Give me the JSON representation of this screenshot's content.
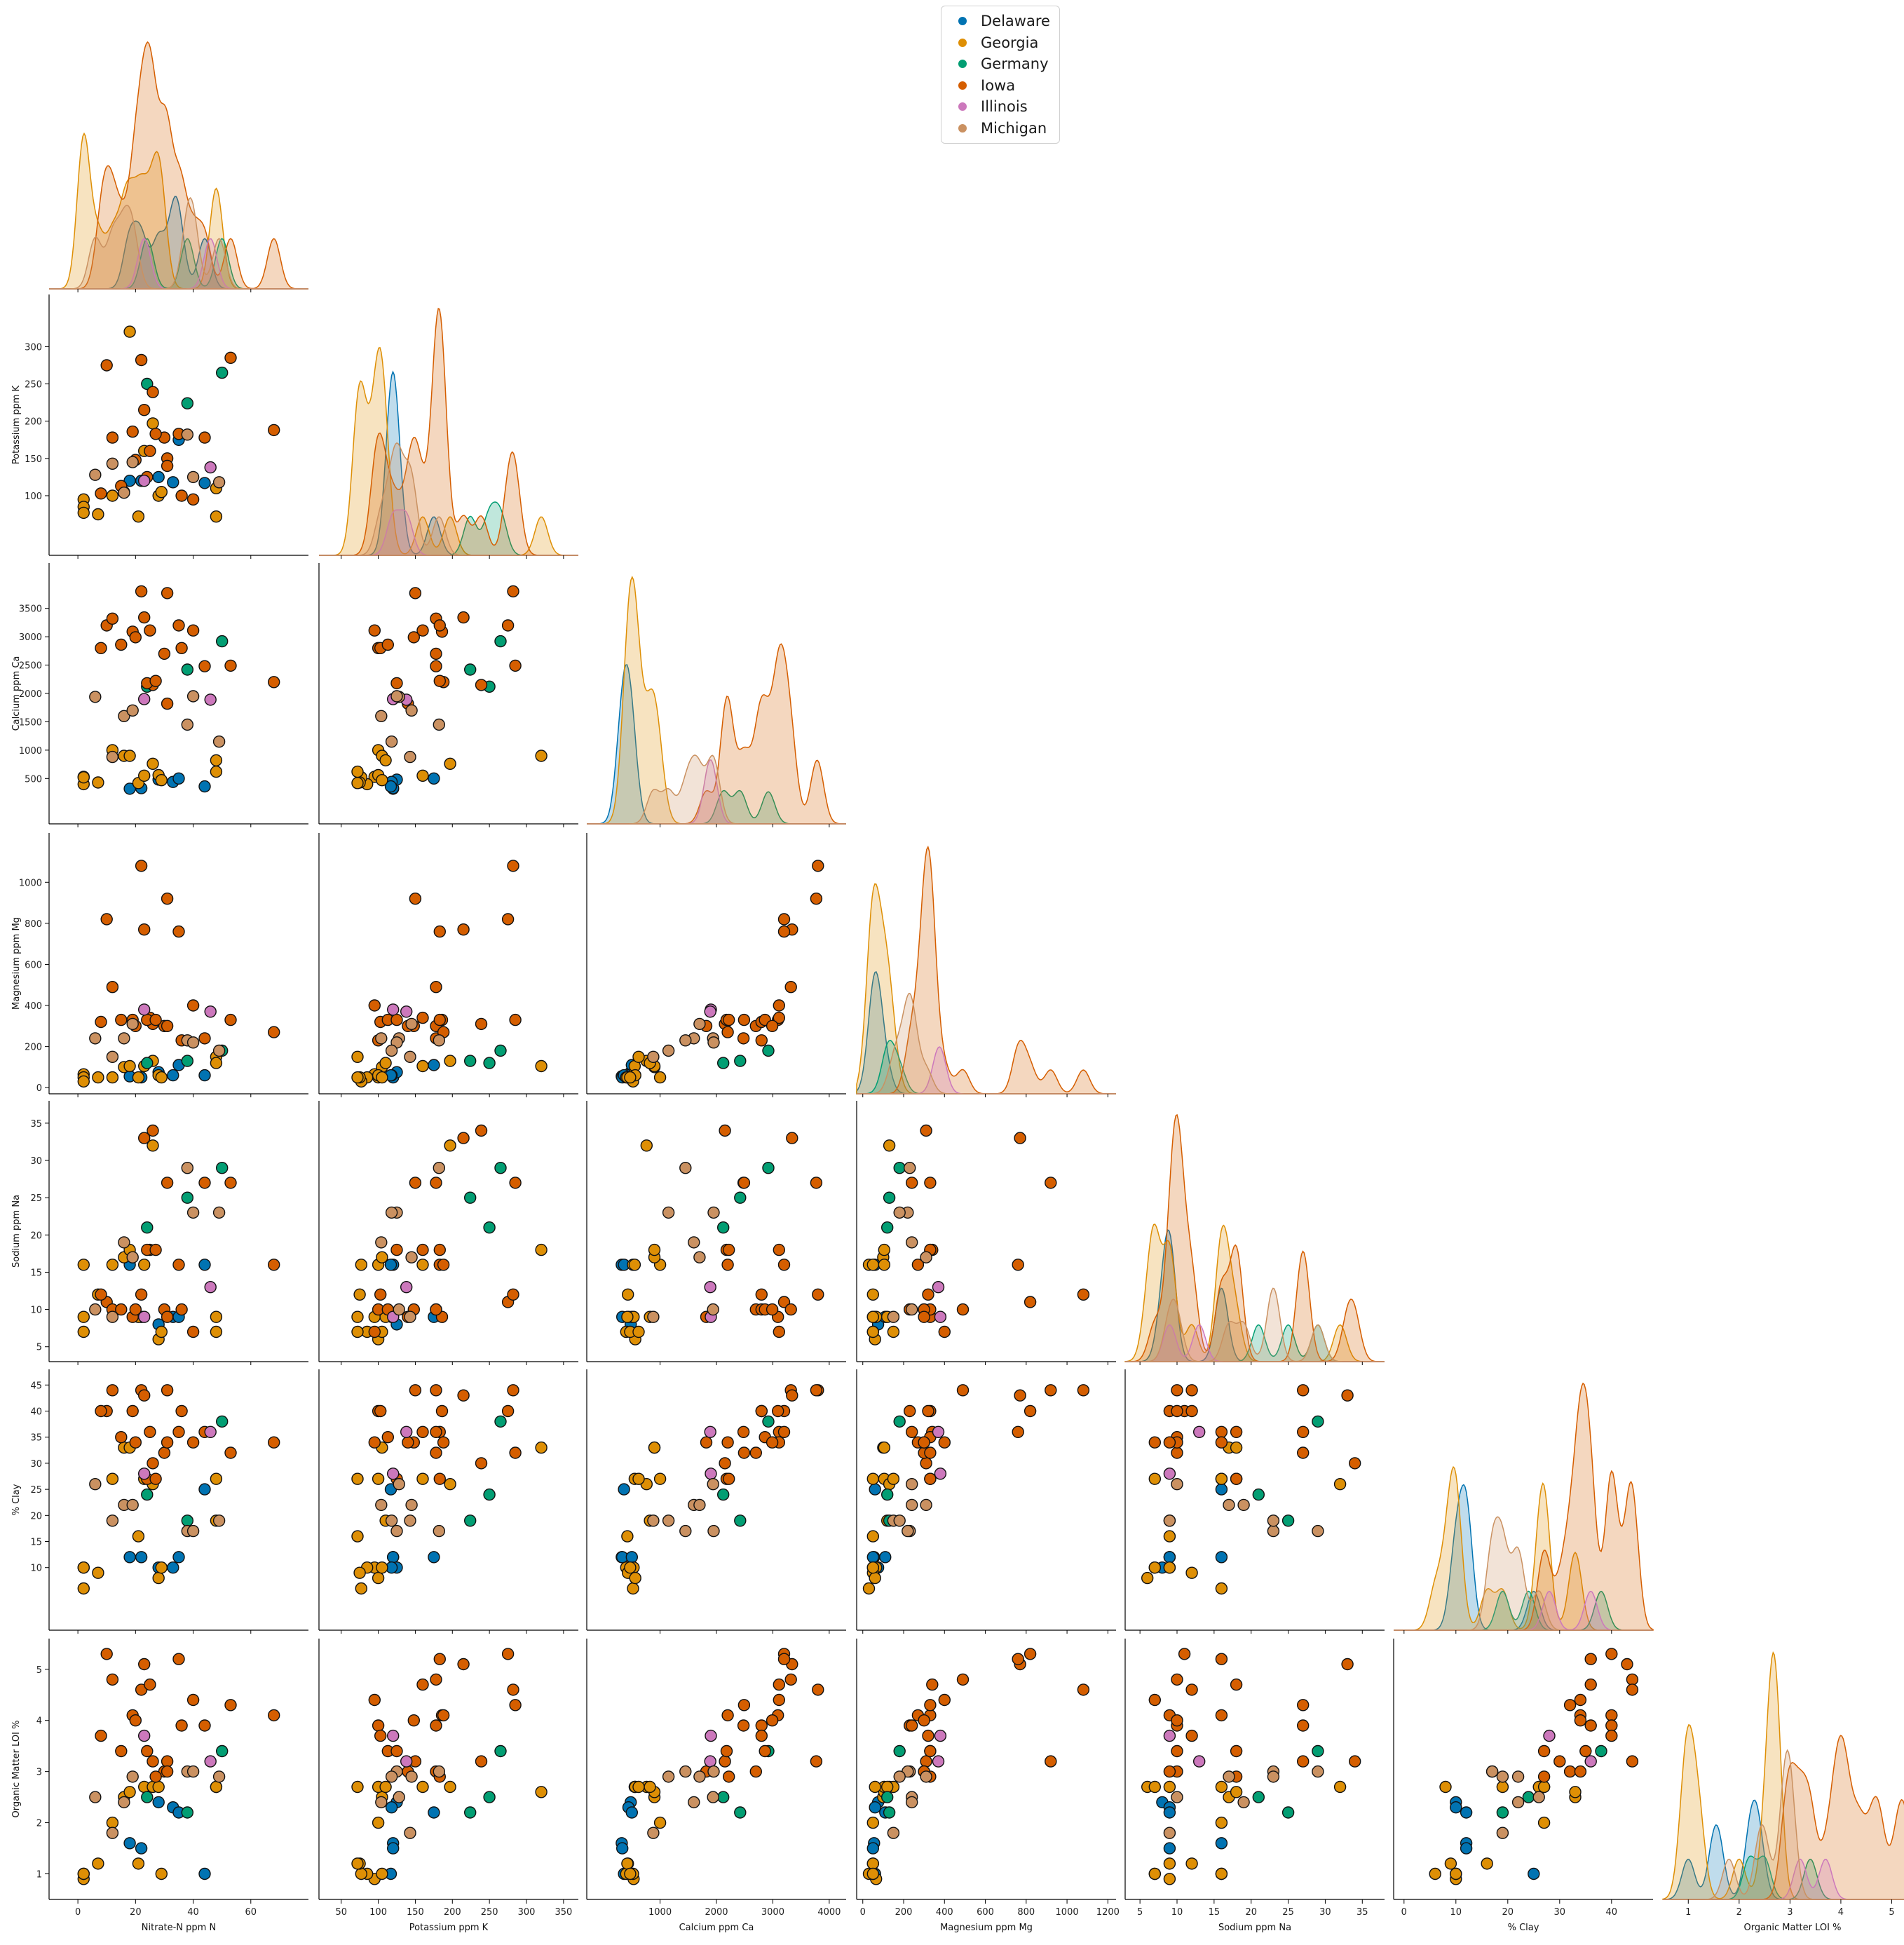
{
  "chart_data": {
    "type": "scatter",
    "subtype": "pairplot-lower-corner",
    "variables": [
      "Nitrate-N ppm N",
      "Potassium ppm K",
      "Calcium ppm Ca",
      "Magnesium ppm Mg",
      "Sodium ppm Na",
      "% Clay",
      "Organic Matter LOI %"
    ],
    "axis_ranges": [
      [
        -10,
        80
      ],
      [
        20,
        370
      ],
      [
        -300,
        4300
      ],
      [
        -30,
        1240
      ],
      [
        3,
        38
      ],
      [
        -2,
        48
      ],
      [
        0.5,
        5.6
      ]
    ],
    "ticks": [
      [
        0,
        20,
        40,
        60
      ],
      [
        100,
        150,
        200,
        250,
        300
      ],
      [
        500,
        1000,
        1500,
        2000,
        2500,
        3000,
        3500
      ],
      [
        0,
        200,
        400,
        600,
        800,
        1000
      ],
      [
        5,
        10,
        15,
        20,
        25,
        30,
        35
      ],
      [
        10,
        15,
        20,
        25,
        30,
        35,
        40,
        45
      ],
      [
        1,
        2,
        3,
        4,
        5
      ]
    ],
    "x_ticks": [
      [
        0,
        20,
        40,
        60
      ],
      [
        50,
        100,
        150,
        200,
        250,
        300,
        350
      ],
      [
        1000,
        2000,
        3000,
        4000
      ],
      [
        0,
        200,
        400,
        600,
        800,
        1000,
        1200
      ],
      [
        5,
        10,
        15,
        20,
        25,
        30,
        35
      ],
      [
        0,
        10,
        20,
        30,
        40
      ],
      [
        1,
        2,
        3,
        4,
        5
      ]
    ],
    "legend": {
      "position": "top-center",
      "entries": [
        "Delaware",
        "Georgia",
        "Germany",
        "Iowa",
        "Illinois",
        "Michigan"
      ]
    },
    "series": [
      {
        "name": "Delaware",
        "color": "#0173b2",
        "points": [
          [
            18,
            120,
            320,
            55,
            16,
            12,
            1.6
          ],
          [
            22,
            120,
            330,
            50,
            9,
            12,
            1.5
          ],
          [
            28,
            125,
            480,
            75,
            8,
            10,
            2.4
          ],
          [
            33,
            118,
            440,
            60,
            9,
            10,
            2.3
          ],
          [
            35,
            175,
            500,
            110,
            9,
            12,
            2.2
          ],
          [
            44,
            117,
            360,
            60,
            16,
            25,
            1.0
          ]
        ]
      },
      {
        "name": "Georgia",
        "color": "#de8f05",
        "points": [
          [
            2,
            95,
            530,
            65,
            9,
            10,
            0.9
          ],
          [
            2,
            85,
            400,
            50,
            7,
            10,
            1.0
          ],
          [
            2,
            77,
            520,
            30,
            16,
            6,
            1.0
          ],
          [
            7,
            75,
            430,
            50,
            12,
            9,
            1.2
          ],
          [
            12,
            100,
            1000,
            50,
            16,
            27,
            2.0
          ],
          [
            16,
            105,
            900,
            100,
            17,
            33,
            2.5
          ],
          [
            18,
            320,
            900,
            105,
            18,
            33,
            2.6
          ],
          [
            21,
            72,
            420,
            50,
            9,
            16,
            1.2
          ],
          [
            23,
            160,
            550,
            105,
            16,
            27,
            2.7
          ],
          [
            26,
            197,
            760,
            130,
            32,
            26,
            2.7
          ],
          [
            28,
            100,
            560,
            60,
            6,
            8,
            2.7
          ],
          [
            29,
            105,
            470,
            50,
            7,
            10,
            1.0
          ],
          [
            48,
            72,
            620,
            150,
            7,
            27,
            2.7
          ],
          [
            48,
            110,
            820,
            120,
            9,
            19,
            2.7
          ]
        ]
      },
      {
        "name": "Germany",
        "color": "#029e73",
        "points": [
          [
            24,
            250,
            2120,
            120,
            21,
            24,
            2.5
          ],
          [
            38,
            224,
            2420,
            130,
            25,
            19,
            2.2
          ],
          [
            50,
            265,
            2920,
            180,
            29,
            38,
            3.4
          ]
        ]
      },
      {
        "name": "Iowa",
        "color": "#d55e00",
        "points": [
          [
            10,
            275,
            3200,
            820,
            11,
            40,
            5.3
          ],
          [
            12,
            178,
            3320,
            490,
            10,
            44,
            4.8
          ],
          [
            19,
            186,
            3090,
            330,
            9,
            40,
            4.1
          ],
          [
            22,
            282,
            3800,
            1080,
            12,
            44,
            4.6
          ],
          [
            23,
            215,
            3340,
            770,
            33,
            43,
            5.1
          ],
          [
            25,
            160,
            3110,
            340,
            18,
            36,
            4.7
          ],
          [
            26,
            239,
            2150,
            310,
            34,
            30,
            3.2
          ],
          [
            30,
            178,
            2700,
            300,
            10,
            32,
            3.0
          ],
          [
            31,
            150,
            3770,
            920,
            27,
            44,
            3.2
          ],
          [
            35,
            183,
            3200,
            760,
            16,
            36,
            5.2
          ],
          [
            36,
            100,
            2800,
            230,
            10,
            40,
            3.9
          ],
          [
            40,
            95,
            3110,
            400,
            7,
            34,
            4.4
          ],
          [
            44,
            178,
            2480,
            240,
            27,
            36,
            3.9
          ],
          [
            53,
            285,
            2490,
            330,
            27,
            32,
            4.3
          ],
          [
            68,
            188,
            2200,
            270,
            16,
            34,
            4.1
          ],
          [
            8,
            103,
            2800,
            320,
            12,
            40,
            3.7
          ],
          [
            15,
            113,
            2860,
            330,
            10,
            35,
            3.4
          ],
          [
            20,
            148,
            2990,
            300,
            10,
            34,
            4.0
          ],
          [
            24,
            125,
            2180,
            330,
            18,
            27,
            3.4
          ],
          [
            27,
            183,
            2220,
            330,
            18,
            27,
            2.9
          ],
          [
            31,
            140,
            1820,
            300,
            9,
            34,
            3.0
          ]
        ]
      },
      {
        "name": "Illinois",
        "color": "#cc78bc",
        "points": [
          [
            23,
            120,
            1900,
            380,
            9,
            28,
            3.7
          ],
          [
            46,
            138,
            1890,
            370,
            13,
            36,
            3.2
          ]
        ]
      },
      {
        "name": "Michigan",
        "color": "#ca9161",
        "points": [
          [
            6,
            128,
            1940,
            240,
            10,
            26,
            2.5
          ],
          [
            12,
            143,
            880,
            150,
            9,
            19,
            1.8
          ],
          [
            16,
            104,
            1600,
            240,
            19,
            22,
            2.4
          ],
          [
            19,
            145,
            1700,
            310,
            17,
            22,
            2.9
          ],
          [
            38,
            182,
            1450,
            230,
            29,
            17,
            3.0
          ],
          [
            40,
            125,
            1950,
            220,
            23,
            17,
            3.0
          ],
          [
            49,
            118,
            1150,
            180,
            23,
            19,
            2.9
          ]
        ]
      }
    ]
  }
}
